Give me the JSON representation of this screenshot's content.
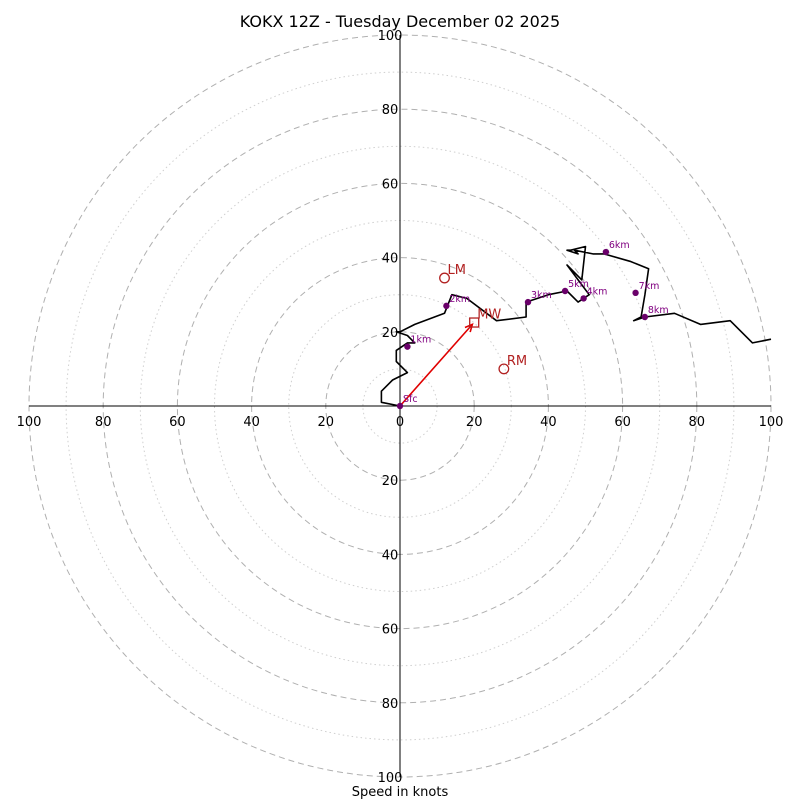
{
  "chart_data": {
    "type": "scatter",
    "title": "KOKX 12Z - Tuesday December 02 2025",
    "xlabel": "Speed in knots",
    "ylabel": "",
    "xlim": [
      -100,
      100
    ],
    "ylim": [
      -100,
      100
    ],
    "rings": {
      "major": [
        20,
        40,
        60,
        80,
        100
      ],
      "minor": [
        10,
        30,
        50,
        70,
        90
      ]
    },
    "tick_labels": {
      "x": [
        "100",
        "80",
        "60",
        "40",
        "20",
        "0",
        "20",
        "40",
        "60",
        "80",
        "100"
      ],
      "y_top": [
        "100",
        "80",
        "60",
        "40",
        "20"
      ],
      "y_bottom": [
        "20",
        "40",
        "60",
        "80",
        "100"
      ]
    },
    "hodograph": {
      "x": [
        0,
        -5,
        -5,
        -2,
        2,
        -1,
        -1,
        2,
        4,
        2,
        -1,
        0,
        4,
        12,
        14,
        18,
        26,
        34,
        34,
        40,
        45,
        48,
        51,
        48,
        45,
        49,
        50,
        46,
        45,
        48,
        47,
        52,
        55,
        62,
        67,
        66,
        65,
        63,
        63,
        66,
        74,
        81,
        89,
        95,
        100
      ],
      "y": [
        0,
        1,
        4,
        7,
        9,
        12,
        15,
        17,
        17,
        19,
        20,
        20,
        22,
        25,
        30,
        29,
        23,
        24,
        28,
        30,
        31,
        28,
        30,
        34,
        38,
        34,
        43,
        42,
        42,
        41,
        42,
        41,
        41,
        39,
        37,
        30,
        24,
        23,
        23,
        24,
        25,
        22,
        23,
        17,
        18
      ]
    },
    "height_markers": [
      {
        "label": "Sfc",
        "u": 0,
        "v": 0
      },
      {
        "label": "1km",
        "u": 2,
        "v": 16
      },
      {
        "label": "2km",
        "u": 12.5,
        "v": 27
      },
      {
        "label": "3km",
        "u": 34.5,
        "v": 28
      },
      {
        "label": "4km",
        "u": 49.5,
        "v": 29
      },
      {
        "label": "5km",
        "u": 44.5,
        "v": 31
      },
      {
        "label": "6km",
        "u": 55.5,
        "v": 41.5
      },
      {
        "label": "7km",
        "u": 63.5,
        "v": 30.5
      },
      {
        "label": "8km",
        "u": 66,
        "v": 24
      }
    ],
    "storm_motions": [
      {
        "label": "LM",
        "u": 12,
        "v": 34.5,
        "marker": "circle"
      },
      {
        "label": "MW",
        "u": 20,
        "v": 22.5,
        "marker": "square"
      },
      {
        "label": "RM",
        "u": 28,
        "v": 10,
        "marker": "circle"
      }
    ],
    "shear_vector": {
      "from": [
        0,
        0
      ],
      "to": [
        19.5,
        22
      ]
    }
  },
  "colors": {
    "hodograph": "#000000",
    "height_marker": "#6a006a",
    "height_label": "#800080",
    "storm_motion": "#b22222",
    "shear_vector": "#e00000"
  }
}
